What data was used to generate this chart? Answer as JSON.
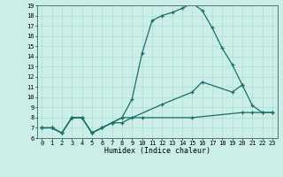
{
  "xlabel": "Humidex (Indice chaleur)",
  "bg_color": "#cceee8",
  "grid_color": "#aaddcc",
  "line_color": "#1a6e6a",
  "xlim": [
    -0.5,
    23.5
  ],
  "ylim": [
    6,
    19
  ],
  "yticks": [
    6,
    7,
    8,
    9,
    10,
    11,
    12,
    13,
    14,
    15,
    16,
    17,
    18,
    19
  ],
  "xticks": [
    0,
    1,
    2,
    3,
    4,
    5,
    6,
    7,
    8,
    9,
    10,
    11,
    12,
    13,
    14,
    15,
    16,
    17,
    18,
    19,
    20,
    21,
    22,
    23
  ],
  "line1_x": [
    0,
    1,
    2,
    3,
    4,
    5,
    6,
    7,
    8,
    9,
    10,
    11,
    12,
    13,
    14,
    15,
    16,
    17,
    18,
    19,
    20
  ],
  "line1_y": [
    7,
    7,
    6.5,
    8,
    8,
    6.5,
    7.0,
    7.5,
    8.0,
    9.8,
    14.3,
    17.5,
    18.0,
    18.3,
    18.7,
    19.2,
    18.5,
    16.8,
    14.8,
    13.2,
    11.2
  ],
  "line2_x": [
    0,
    1,
    2,
    3,
    4,
    5,
    6,
    7,
    8,
    10,
    15,
    20,
    21,
    22,
    23
  ],
  "line2_y": [
    7,
    7,
    6.5,
    8,
    8,
    6.5,
    7.0,
    7.5,
    8.0,
    8.0,
    8.0,
    8.5,
    8.5,
    8.5,
    8.5
  ],
  "line3_x": [
    0,
    1,
    2,
    3,
    4,
    5,
    6,
    7,
    8,
    9,
    12,
    15,
    16,
    19,
    20,
    21,
    22,
    23
  ],
  "line3_y": [
    7,
    7,
    6.5,
    8,
    8,
    6.5,
    7.0,
    7.5,
    7.5,
    8.0,
    9.3,
    10.5,
    11.5,
    10.5,
    11.2,
    9.2,
    8.5,
    8.5
  ]
}
